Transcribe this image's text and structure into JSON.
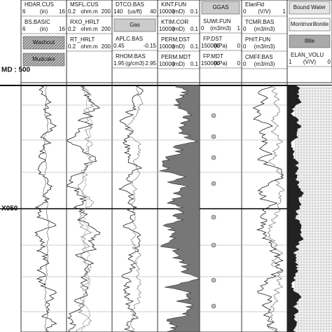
{
  "depth": {
    "unit_label": "MD : 500",
    "marker": "X050"
  },
  "tracks": [
    {
      "items": [
        {
          "name": "HDAR.CUS",
          "left": "6",
          "unit": "(in)",
          "right": "16"
        },
        {
          "name": "BS.BASIC",
          "left": "6",
          "unit": "(in)",
          "right": "16"
        },
        {
          "box": "Washout"
        },
        {
          "box": "Mudcake"
        }
      ]
    },
    {
      "items": [
        {
          "name": "MSFL.CUS",
          "left": "0.2",
          "unit": "ohm.m",
          "right": "200"
        },
        {
          "name": "RXO_HRLT",
          "left": "0.2",
          "unit": "ohm.m",
          "right": "200"
        },
        {
          "name": "RT_HRLT",
          "left": "0.2",
          "unit": "ohm.m",
          "right": "200"
        }
      ]
    },
    {
      "items": [
        {
          "name": "DTCO.BAS",
          "left": "140",
          "unit": "(us/ft)",
          "right": "40"
        },
        {
          "box": "Gas"
        },
        {
          "name": "APLC.BAS",
          "left": "0.45",
          "right": "-0.15"
        },
        {
          "name": "RHOM.BAS",
          "left": "1.95",
          "unit": "(g/cm3)",
          "right": "2.95"
        }
      ]
    },
    {
      "items": [
        {
          "name": "KINT.FUN",
          "left": "10000",
          "unit": "(mD)",
          "right": "0.1"
        },
        {
          "name": "KTIM.COR",
          "left": "10000",
          "unit": "(mD)",
          "right": "0.1"
        },
        {
          "name": "PERM.DST",
          "left": "10000",
          "unit": "(mD)",
          "right": "0.1"
        },
        {
          "name": "PERM.MDT",
          "left": "10000",
          "unit": "(mD)",
          "right": "0.1"
        }
      ]
    },
    {
      "items": [
        {
          "box": "GGAS"
        },
        {
          "name": "SUWI.FUN",
          "left": "0",
          "unit": "(m3/m3)",
          "right": "1"
        },
        {
          "name": "FP.DST",
          "left": "150000",
          "unit": "(kPa)",
          "right": "0"
        },
        {
          "name": "FP.MDT",
          "left": "150000",
          "unit": "(kPa)",
          "right": "0"
        }
      ]
    },
    {
      "items": [
        {
          "name": "ElanFld",
          "left": "0",
          "unit": "(V/V)",
          "right": "1"
        },
        {
          "name": "TCMR.BAS",
          "left": "0",
          "unit": "(m3/m3)"
        },
        {
          "name": "PHIT.FUN",
          "left": "0",
          "unit": "(m3/m3)"
        },
        {
          "name": "CMFF.BAS",
          "left": "0",
          "unit": "(m3/m3)"
        }
      ]
    },
    {
      "items": [
        {
          "box": "Bound Water"
        },
        {
          "box": "Montmorillonite"
        },
        {
          "box": "Illite"
        },
        {
          "name": "ELAN_VOLU",
          "left": "1",
          "unit": "(V/V)",
          "right": "0"
        }
      ]
    }
  ]
}
